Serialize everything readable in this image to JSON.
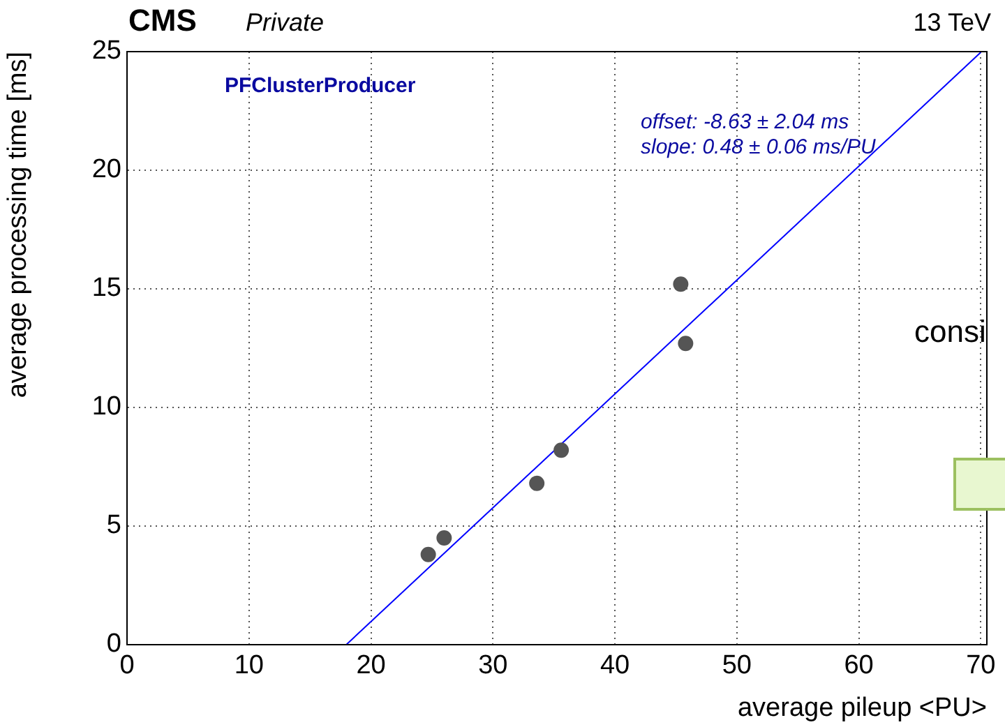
{
  "chart_data": {
    "type": "scatter",
    "xlabel": "average pileup <PU>",
    "ylabel": "average processing time [ms]",
    "annotations": [
      "CMS",
      "Private",
      "13 TeV",
      "PFClusterProducer",
      "offset: -8.63 ± 2.04 ms",
      "slope: 0.48 ± 0.06 ms/PU",
      "consi"
    ],
    "series": [
      {
        "color": "#555555",
        "marker": "circle",
        "x": [
          24.7,
          26.0,
          33.6,
          35.6,
          45.4,
          45.8
        ],
        "values": [
          3.8,
          4.5,
          6.8,
          8.2,
          15.2,
          12.7
        ]
      },
      {
        "type": "line",
        "marker": "none",
        "color": "#0000ff",
        "x": [
          17.98,
          70
        ],
        "values": [
          0,
          24.97
        ]
      }
    ],
    "xlim": [
      0,
      70.5
    ],
    "xticks": [
      0,
      10,
      20,
      30,
      40,
      50,
      60,
      70
    ],
    "ylim": [
      0,
      25
    ],
    "yticks": [
      0,
      5,
      10,
      15,
      20,
      25
    ],
    "grid": true,
    "legend": false,
    "line_style": "solid"
  }
}
